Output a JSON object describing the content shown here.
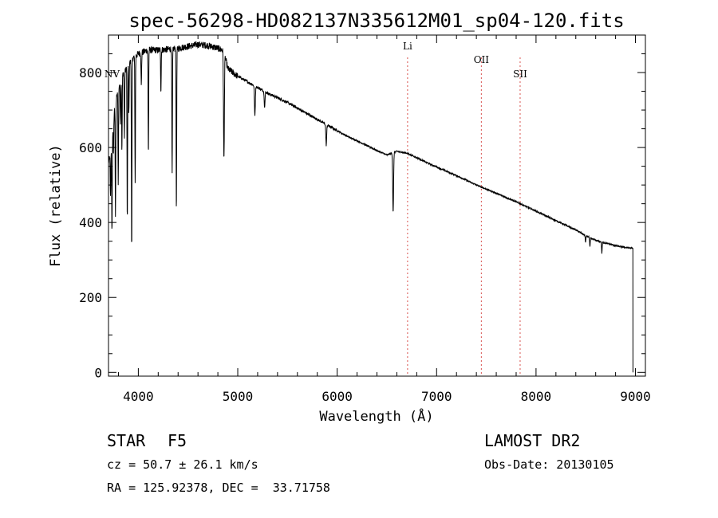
{
  "chart_data": {
    "type": "line",
    "title": "spec-56298-HD082137N335612M01_sp04-120.fits",
    "xlabel": "Wavelength (Å)",
    "ylabel": "Flux (relative)",
    "xlim": [
      3700,
      9100
    ],
    "ylim": [
      -10,
      900
    ],
    "x_ticks": [
      4000,
      5000,
      6000,
      7000,
      8000,
      9000
    ],
    "y_ticks": [
      0,
      200,
      400,
      600,
      800
    ],
    "grid": false,
    "line_color": "#000000",
    "marker_color": "#d9534f",
    "continuum": {
      "x": [
        3700,
        3730,
        3760,
        3800,
        3850,
        3900,
        3950,
        4000,
        4100,
        4200,
        4300,
        4400,
        4500,
        4600,
        4700,
        4800,
        4860,
        4900,
        5000,
        5100,
        5200,
        5300,
        5400,
        5500,
        5600,
        5700,
        5800,
        5900,
        6000,
        6100,
        6200,
        6300,
        6400,
        6500,
        6600,
        6700,
        6800,
        6900,
        7000,
        7200,
        7400,
        7600,
        7800,
        8000,
        8200,
        8400,
        8500,
        8600,
        8700,
        8800,
        8900,
        8960,
        8975
      ],
      "y": [
        560,
        600,
        700,
        760,
        800,
        820,
        840,
        850,
        860,
        860,
        862,
        865,
        870,
        875,
        872,
        865,
        858,
        810,
        790,
        775,
        760,
        745,
        733,
        720,
        705,
        690,
        675,
        660,
        645,
        630,
        618,
        605,
        592,
        580,
        590,
        585,
        573,
        560,
        548,
        525,
        500,
        478,
        455,
        430,
        405,
        380,
        365,
        352,
        345,
        338,
        333,
        332,
        330
      ]
    },
    "absorption_lines": {
      "wavelength": [
        3720,
        3735,
        3750,
        3770,
        3798,
        3820,
        3835,
        3860,
        3889,
        3905,
        3933,
        3968,
        4030,
        4101,
        4227,
        4340,
        4383,
        4861,
        5172,
        5270,
        5890,
        6563,
        8498,
        8542,
        8662
      ],
      "depth": [
        120,
        250,
        80,
        300,
        250,
        110,
        200,
        180,
        420,
        130,
        520,
        340,
        90,
        280,
        110,
        340,
        440,
        290,
        80,
        40,
        55,
        160,
        20,
        25,
        30
      ]
    },
    "end_drop_to": 0,
    "markers": [
      {
        "label": "NV",
        "x": 3720
      },
      {
        "label": "Li",
        "x": 6708
      },
      {
        "label": "OII",
        "x": 7450
      },
      {
        "label": "SII",
        "x": 7840
      }
    ]
  },
  "info": {
    "class_label": "STAR",
    "subclass": "F5",
    "cz": "cz = 50.7 ± 26.1 km/s",
    "coords": "RA = 125.92378, DEC =  33.71758",
    "survey": "LAMOST DR2",
    "obs_date": "Obs-Date: 20130105"
  }
}
